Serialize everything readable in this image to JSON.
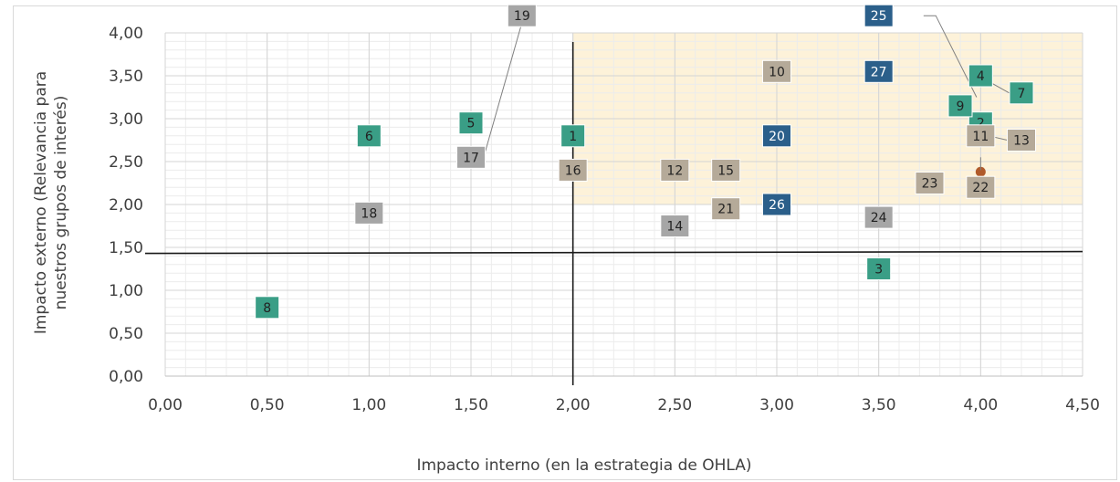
{
  "chart_data": {
    "type": "scatter",
    "xlabel": "Impacto interno (en la estrategia de OHLA)",
    "ylabel_lines": [
      "Impacto externo (Relevancia para",
      "nuestros grupos de interés)"
    ],
    "xlim": [
      0,
      4.5
    ],
    "ylim": [
      0,
      4.0
    ],
    "x_ticks": [
      "0,00",
      "0,50",
      "1,00",
      "1,50",
      "2,00",
      "2,50",
      "3,00",
      "3,50",
      "4,00",
      "4,50"
    ],
    "y_ticks": [
      "0,00",
      "0,50",
      "1,00",
      "1,50",
      "2,00",
      "2,50",
      "3,00",
      "3,50",
      "4,00"
    ],
    "grid": true,
    "threshold_lines": {
      "x": 2.0,
      "y": 1.43
    },
    "highlight_region": {
      "x": [
        2.0,
        4.5
      ],
      "y": [
        2.0,
        4.0
      ],
      "color": "#fdf2d9"
    },
    "colors": {
      "green": "#3a9e86",
      "gray": "#a6a6a6",
      "tan": "#b5aa99",
      "blue": "#2b5f8a"
    },
    "points": [
      {
        "id": "1",
        "x": 2.0,
        "y": 2.8,
        "color": "green"
      },
      {
        "id": "2",
        "x": 4.0,
        "y": 2.95,
        "color": "green"
      },
      {
        "id": "3",
        "x": 3.5,
        "y": 1.25,
        "color": "green"
      },
      {
        "id": "4",
        "x": 4.0,
        "y": 3.5,
        "color": "green"
      },
      {
        "id": "5",
        "x": 1.5,
        "y": 2.95,
        "color": "green"
      },
      {
        "id": "6",
        "x": 1.0,
        "y": 2.8,
        "color": "green"
      },
      {
        "id": "7",
        "x": 4.2,
        "y": 3.3,
        "color": "green"
      },
      {
        "id": "8",
        "x": 0.5,
        "y": 0.8,
        "color": "green"
      },
      {
        "id": "9",
        "x": 3.9,
        "y": 3.15,
        "color": "green"
      },
      {
        "id": "10",
        "x": 3.0,
        "y": 3.55,
        "color": "tan"
      },
      {
        "id": "11",
        "x": 4.0,
        "y": 2.8,
        "color": "tan"
      },
      {
        "id": "12",
        "x": 2.5,
        "y": 2.4,
        "color": "tan"
      },
      {
        "id": "13",
        "x": 4.2,
        "y": 2.75,
        "color": "tan"
      },
      {
        "id": "14",
        "x": 2.5,
        "y": 1.75,
        "color": "gray"
      },
      {
        "id": "15",
        "x": 2.75,
        "y": 2.4,
        "color": "tan"
      },
      {
        "id": "16",
        "x": 2.0,
        "y": 2.4,
        "color": "tan"
      },
      {
        "id": "17",
        "x": 1.5,
        "y": 2.55,
        "color": "gray"
      },
      {
        "id": "18",
        "x": 1.0,
        "y": 1.9,
        "color": "gray"
      },
      {
        "id": "19",
        "x": 1.75,
        "y": 4.2,
        "color": "gray"
      },
      {
        "id": "20",
        "x": 3.0,
        "y": 2.8,
        "color": "blue"
      },
      {
        "id": "21",
        "x": 2.75,
        "y": 1.95,
        "color": "tan"
      },
      {
        "id": "22",
        "x": 4.0,
        "y": 2.2,
        "color": "tan"
      },
      {
        "id": "23",
        "x": 3.75,
        "y": 2.25,
        "color": "tan"
      },
      {
        "id": "24",
        "x": 3.5,
        "y": 1.85,
        "color": "gray"
      },
      {
        "id": "25",
        "x": 3.5,
        "y": 4.2,
        "color": "blue"
      },
      {
        "id": "26",
        "x": 3.0,
        "y": 2.0,
        "color": "blue"
      },
      {
        "id": "27",
        "x": 3.5,
        "y": 3.55,
        "color": "blue"
      }
    ]
  }
}
